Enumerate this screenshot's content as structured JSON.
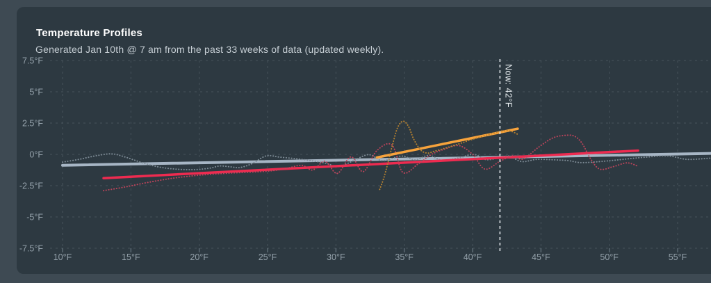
{
  "header": {
    "title": "Temperature Profiles",
    "subtitle": "Generated Jan 10th @ 7 am from the past 33 weeks of data (updated weekly)."
  },
  "colors": {
    "page_background": "#3e4a53",
    "card_background": "#2d3941",
    "title_text": "#ffffff",
    "subtitle_text": "#c5cdd3",
    "axis_label": "#94a1aa",
    "gridline": "#46525b",
    "tick_mark": "#5c6a73",
    "now_line": "#e9eef1",
    "gray_trend": "#a7b6c5",
    "gray_dotted": "#7f8d98",
    "red_trend": "#ee2b50",
    "red_dotted": "#c2455c",
    "orange_trend": "#f7a33c",
    "orange_dotted": "#bd852f"
  },
  "chart_data": {
    "type": "line",
    "title": "Temperature Profiles",
    "xlabel": "",
    "ylabel": "",
    "x_axis": {
      "tick_suffix": "°F",
      "ticks": [
        10,
        15,
        20,
        25,
        30,
        35,
        40,
        45,
        50,
        55
      ],
      "range": [
        9.1,
        57.5
      ],
      "grid": true
    },
    "y_axis": {
      "tick_suffix": "°F",
      "ticks": [
        7.5,
        5,
        2.5,
        0,
        -2.5,
        -5,
        -7.5
      ],
      "range": [
        -7.5,
        7.5
      ],
      "grid": true
    },
    "annotation": {
      "text": "Now: 42°F",
      "x": 42
    },
    "legend": "none",
    "series": [
      {
        "name": "gray-trend",
        "style": "solid",
        "color_key": "gray_trend",
        "width": 4,
        "points": [
          [
            10,
            -0.87
          ],
          [
            57.5,
            0.08
          ]
        ]
      },
      {
        "name": "gray-dotted",
        "style": "dotted",
        "color_key": "gray_dotted",
        "width": 2,
        "points": [
          [
            10,
            -0.62
          ],
          [
            11.2,
            -0.4
          ],
          [
            12.4,
            -0.12
          ],
          [
            13.6,
            0.04
          ],
          [
            14.6,
            -0.22
          ],
          [
            15.7,
            -0.62
          ],
          [
            17,
            -1.0
          ],
          [
            18.3,
            -1.18
          ],
          [
            19.6,
            -1.22
          ],
          [
            20.8,
            -1.1
          ],
          [
            21.5,
            -0.93
          ],
          [
            22.3,
            -1.0
          ],
          [
            23,
            -1.05
          ],
          [
            23.9,
            -0.72
          ],
          [
            24.9,
            -0.12
          ],
          [
            25.9,
            -0.22
          ],
          [
            27.1,
            -0.35
          ],
          [
            28.3,
            -0.52
          ],
          [
            29.3,
            -0.72
          ],
          [
            30.2,
            -0.98
          ],
          [
            31.3,
            -0.5
          ],
          [
            32.4,
            -0.02
          ],
          [
            33.4,
            -0.5
          ],
          [
            34.8,
            -0.14
          ],
          [
            35.8,
            -0.44
          ],
          [
            36.8,
            -0.08
          ],
          [
            37.8,
            -0.48
          ],
          [
            39.1,
            -0.25
          ],
          [
            40.1,
            0.0
          ],
          [
            41,
            -0.42
          ],
          [
            42,
            -0.26
          ],
          [
            42.7,
            -0.15
          ],
          [
            43.6,
            -0.58
          ],
          [
            44.7,
            -0.4
          ],
          [
            46,
            -0.44
          ],
          [
            47,
            -0.5
          ],
          [
            48,
            -0.66
          ],
          [
            49.7,
            -0.54
          ],
          [
            51,
            -0.4
          ],
          [
            52.7,
            -0.22
          ],
          [
            54.3,
            -0.12
          ],
          [
            55.7,
            -0.4
          ],
          [
            57.4,
            -0.3
          ]
        ]
      },
      {
        "name": "red-trend",
        "style": "solid",
        "color_key": "red_trend",
        "width": 3.5,
        "points": [
          [
            13,
            -1.9
          ],
          [
            52.1,
            0.3
          ]
        ]
      },
      {
        "name": "red-dotted",
        "style": "dotted",
        "color_key": "red_dotted",
        "width": 2,
        "points": [
          [
            13,
            -2.9
          ],
          [
            14.6,
            -2.6
          ],
          [
            16.2,
            -2.25
          ],
          [
            17.8,
            -1.95
          ],
          [
            19.4,
            -1.73
          ],
          [
            21,
            -1.58
          ],
          [
            22.6,
            -1.48
          ],
          [
            24.2,
            -1.4
          ],
          [
            25.4,
            -1.3
          ],
          [
            26.4,
            -1.12
          ],
          [
            27.5,
            -0.88
          ],
          [
            28.3,
            -1.25
          ],
          [
            29.2,
            -0.55
          ],
          [
            30.1,
            -1.52
          ],
          [
            31.1,
            -0.2
          ],
          [
            32,
            -1.38
          ],
          [
            33,
            0.3
          ],
          [
            34.1,
            0.75
          ],
          [
            34.9,
            -1.45
          ],
          [
            36,
            -0.78
          ],
          [
            37,
            0.0
          ],
          [
            37.9,
            0.4
          ],
          [
            39,
            0.7
          ],
          [
            40,
            0.0
          ],
          [
            40.9,
            -1.18
          ],
          [
            42,
            -0.55
          ],
          [
            42.7,
            -0.2
          ],
          [
            43.1,
            -0.12
          ],
          [
            43.7,
            -0.38
          ],
          [
            44.8,
            0.55
          ],
          [
            45.8,
            1.28
          ],
          [
            46.6,
            1.5
          ],
          [
            47.4,
            1.48
          ],
          [
            48,
            0.9
          ],
          [
            48.6,
            -0.3
          ],
          [
            49.3,
            -1.18
          ],
          [
            50.3,
            -0.98
          ],
          [
            51.3,
            -0.68
          ],
          [
            52.1,
            -0.95
          ]
        ]
      },
      {
        "name": "orange-trend",
        "style": "solid",
        "color_key": "orange_trend",
        "width": 3.5,
        "points": [
          [
            33,
            -0.25
          ],
          [
            43.3,
            2.05
          ]
        ]
      },
      {
        "name": "orange-dotted",
        "style": "dotted",
        "color_key": "orange_dotted",
        "width": 2,
        "points": [
          [
            33.2,
            -2.8
          ],
          [
            33.5,
            -1.9
          ],
          [
            33.8,
            -0.7
          ],
          [
            34.1,
            0.6
          ],
          [
            34.5,
            2.1
          ],
          [
            34.9,
            2.65
          ],
          [
            35.3,
            2.25
          ],
          [
            35.7,
            1.2
          ],
          [
            36.2,
            0.35
          ],
          [
            36.7,
            0.1
          ],
          [
            37.2,
            0.25
          ],
          [
            38,
            0.5
          ],
          [
            38.9,
            0.8
          ],
          [
            39.7,
            1.1
          ],
          [
            40.6,
            1.4
          ],
          [
            41.4,
            1.65
          ],
          [
            42.2,
            1.88
          ],
          [
            42.8,
            1.85
          ],
          [
            43.3,
            1.6
          ]
        ]
      }
    ]
  }
}
